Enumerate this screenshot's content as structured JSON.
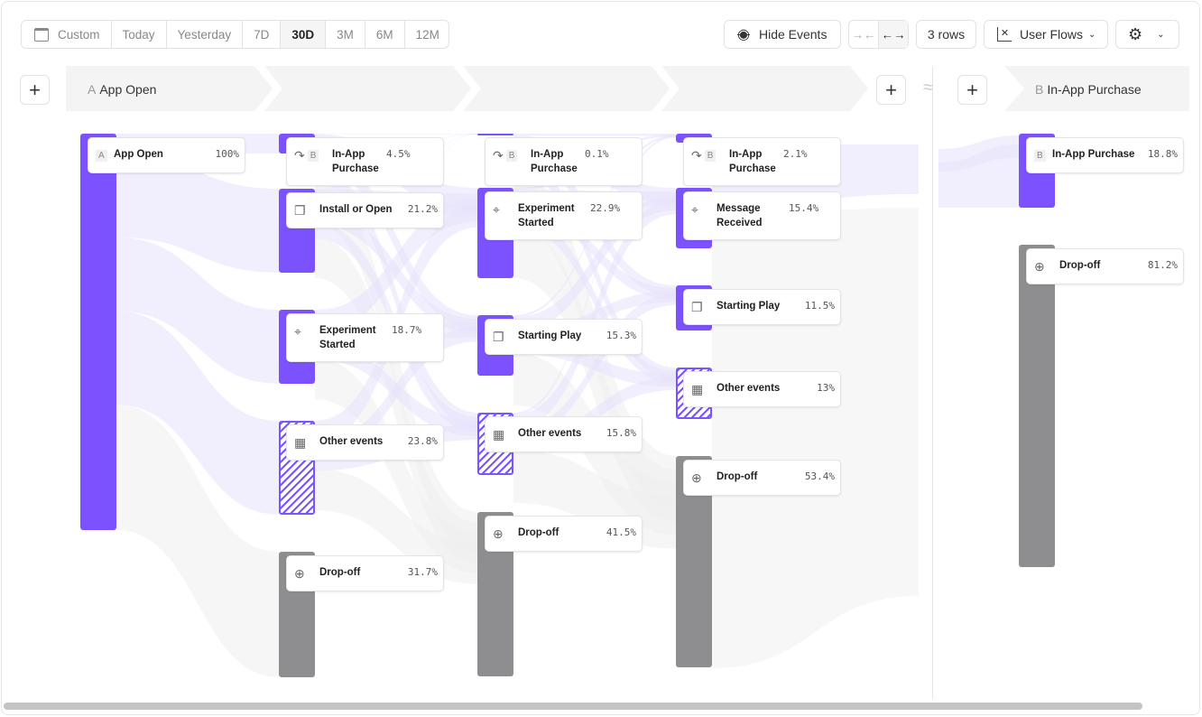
{
  "toolbar": {
    "date_ranges": [
      "Custom",
      "Today",
      "Yesterday",
      "7D",
      "30D",
      "3M",
      "6M",
      "12M"
    ],
    "active_range": "30D",
    "hide_events": "Hide Events",
    "rows": "3 rows",
    "chart_type": "User Flows"
  },
  "steps": {
    "start": {
      "letter": "A",
      "label": "App Open"
    },
    "end": {
      "letter": "B",
      "label": "In-App Purchase"
    }
  },
  "colors": {
    "accent": "#7b52fe",
    "dropoff": "#8e8e90",
    "flow": "#ece8fb"
  },
  "columns": [
    {
      "nodes": [
        {
          "icon": "letter-A",
          "letter": "A",
          "name": "App Open",
          "pct": "100%",
          "kind": "event"
        }
      ]
    },
    {
      "nodes": [
        {
          "icon": "redirect-icon",
          "letter": "B",
          "name": "In-App Purchase",
          "pct": "4.5%",
          "kind": "event"
        },
        {
          "icon": "copy-icon",
          "name": "Install or Open",
          "pct": "21.2%",
          "kind": "event"
        },
        {
          "icon": "cursor-click-icon",
          "name": "Experiment Started",
          "pct": "18.7%",
          "kind": "event"
        },
        {
          "icon": "grid-icon",
          "name": "Other events",
          "pct": "23.8%",
          "kind": "other"
        },
        {
          "icon": "arrow-down-circle-icon",
          "name": "Drop-off",
          "pct": "31.7%",
          "kind": "dropoff"
        }
      ]
    },
    {
      "nodes": [
        {
          "icon": "redirect-icon",
          "letter": "B",
          "name": "In-App Purchase",
          "pct": "0.1%",
          "kind": "event"
        },
        {
          "icon": "cursor-click-icon",
          "name": "Experiment Started",
          "pct": "22.9%",
          "kind": "event"
        },
        {
          "icon": "copy-icon",
          "name": "Starting Play",
          "pct": "15.3%",
          "kind": "event"
        },
        {
          "icon": "grid-icon",
          "name": "Other events",
          "pct": "15.8%",
          "kind": "other"
        },
        {
          "icon": "arrow-down-circle-icon",
          "name": "Drop-off",
          "pct": "41.5%",
          "kind": "dropoff"
        }
      ]
    },
    {
      "nodes": [
        {
          "icon": "redirect-icon",
          "letter": "B",
          "name": "In-App Purchase",
          "pct": "2.1%",
          "kind": "event"
        },
        {
          "icon": "cursor-click-icon",
          "name": "Message Received",
          "pct": "15.4%",
          "kind": "event"
        },
        {
          "icon": "copy-icon",
          "name": "Starting Play",
          "pct": "11.5%",
          "kind": "event"
        },
        {
          "icon": "grid-icon",
          "name": "Other events",
          "pct": "13%",
          "kind": "other"
        },
        {
          "icon": "arrow-down-circle-icon",
          "name": "Drop-off",
          "pct": "53.4%",
          "kind": "dropoff"
        }
      ]
    },
    {
      "nodes": [
        {
          "icon": "letter-B",
          "letter": "B",
          "name": "In-App Purchase",
          "pct": "18.8%",
          "kind": "event"
        },
        {
          "icon": "arrow-down-circle-icon",
          "name": "Drop-off",
          "pct": "81.2%",
          "kind": "dropoff"
        }
      ]
    }
  ]
}
